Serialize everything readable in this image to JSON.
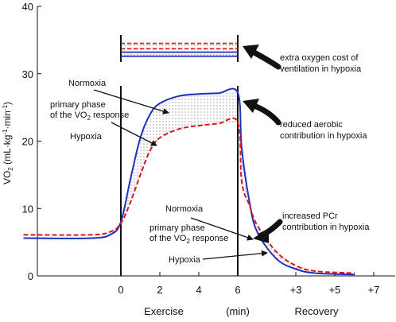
{
  "chart_data": {
    "type": "line",
    "ylabel": "VO2 (mL·kg-1·min-1)",
    "ylabel_parts": {
      "base": "VO",
      "sub": "2",
      "rest": "  (mL·kg",
      "sup1": "-1",
      "mid": "·min",
      "sup2": "-1",
      "end": ")"
    },
    "ylim": [
      0,
      40
    ],
    "yticks": [
      "0",
      "10",
      "20",
      "30",
      "40"
    ],
    "xticks": [
      "0",
      "2",
      "4",
      "6",
      "+3",
      "+5",
      "+7"
    ],
    "xlabels": {
      "exercise": "Exercise",
      "min": "(min)",
      "recovery": "Recovery"
    },
    "series": [
      {
        "name": "Normoxia",
        "color": "#1f2fbf",
        "style": "solid",
        "x": [
          -5.0,
          -1.5,
          -0.5,
          0.0,
          0.5,
          1.0,
          1.5,
          2.0,
          3.0,
          4.0,
          5.0,
          6.0,
          6.2,
          6.6,
          7.0,
          8.0,
          9.0,
          10.0,
          12.0
        ],
        "y": [
          5.6,
          5.6,
          6.2,
          8.0,
          14.5,
          20.5,
          24.0,
          25.6,
          26.7,
          27.0,
          27.1,
          27.2,
          19.0,
          11.0,
          6.5,
          2.5,
          1.0,
          0.4,
          0.2
        ]
      },
      {
        "name": "Hypoxia",
        "color": "#d41a1a",
        "style": "dashed",
        "x": [
          -5.0,
          -1.5,
          -0.5,
          0.0,
          0.5,
          1.0,
          1.5,
          2.0,
          3.0,
          4.0,
          5.0,
          6.0,
          6.2,
          6.6,
          7.0,
          8.0,
          9.0,
          10.0,
          12.0
        ],
        "y": [
          6.1,
          6.1,
          6.6,
          7.8,
          11.0,
          15.0,
          18.6,
          20.5,
          21.8,
          22.3,
          22.6,
          22.8,
          14.0,
          10.5,
          7.5,
          3.5,
          1.5,
          0.7,
          0.4
        ]
      }
    ],
    "ventilation_bars": [
      {
        "series": "Hypoxia",
        "y": 34.5
      },
      {
        "series": "Hypoxia",
        "y": 33.7
      },
      {
        "series": "Normoxia",
        "y": 33.2
      },
      {
        "series": "Normoxia",
        "y": 32.6
      }
    ],
    "annotations": {
      "normoxia_top": "Normoxia",
      "primary_top": [
        "primary phase",
        "of the VO",
        "2",
        " response"
      ],
      "hypoxia_top": "Hypoxia",
      "extra_o2": [
        "extra oxygen cost of",
        "ventilation in hypoxia"
      ],
      "reduced_aerobic": [
        "reduced aerobic",
        "contribution in hypoxia"
      ],
      "normoxia_bottom": "Normoxia",
      "primary_bottom": [
        "primary phase",
        "of the VO",
        "2",
        " response"
      ],
      "hypoxia_bottom": "Hypoxia",
      "increased_pcr": [
        "increased PCr",
        "contribution in hypoxia"
      ]
    }
  }
}
